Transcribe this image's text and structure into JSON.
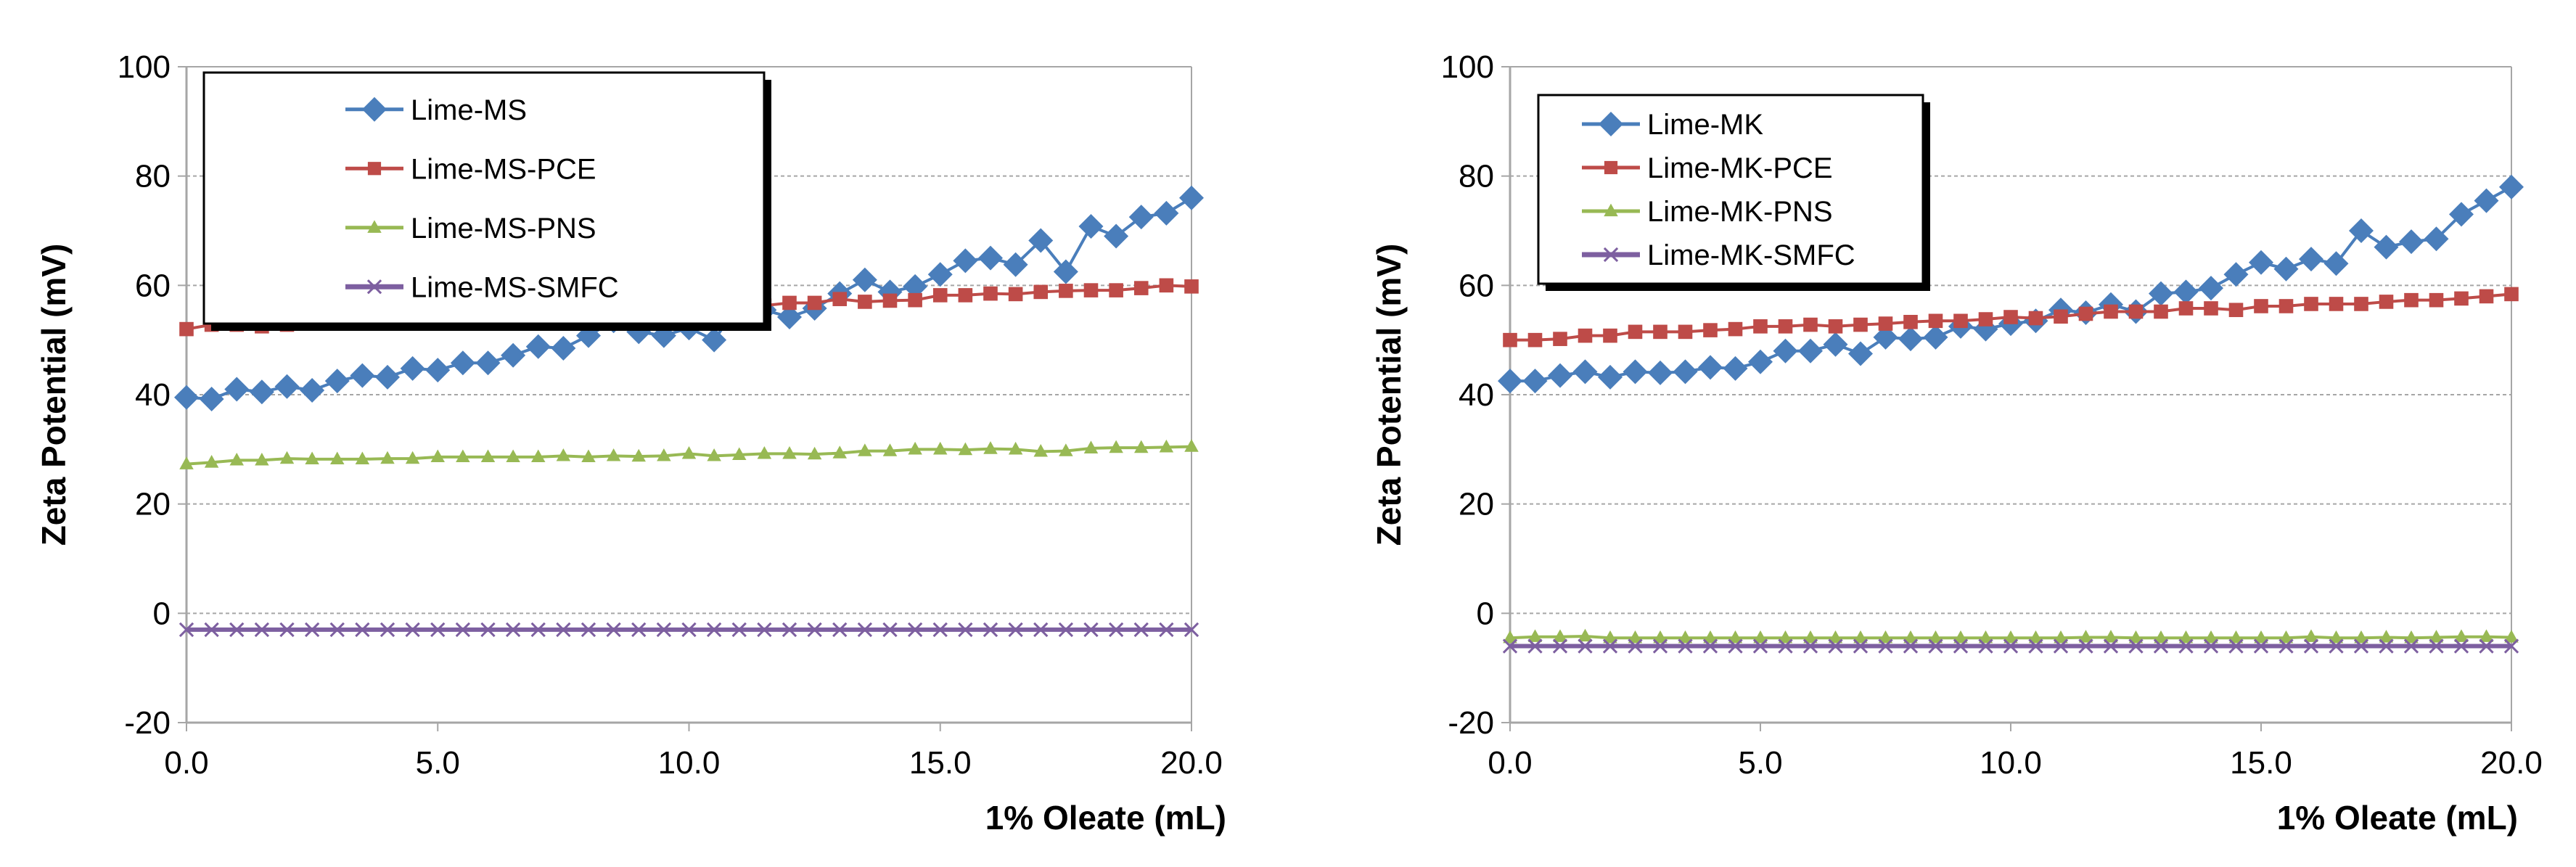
{
  "chart_data": [
    {
      "type": "line",
      "title": "",
      "xlabel": "1% Oleate (mL)",
      "ylabel": "Zeta Potential (mV)",
      "xlim": [
        0,
        20
      ],
      "ylim": [
        -20,
        100
      ],
      "xticks": [
        "0.0",
        "5.0",
        "10.0",
        "15.0",
        "20.0"
      ],
      "yticks": [
        "-20",
        "0",
        "20",
        "40",
        "60",
        "80",
        "100"
      ],
      "grid": "horizontal dashed",
      "legend_placement": "top-left",
      "x_step": 0.5,
      "series": [
        {
          "name": "Lime-MS",
          "color": "#4a7ebb",
          "marker": "diamond",
          "values": [
            39.5,
            39.2,
            41,
            40.5,
            41.5,
            40.8,
            42.5,
            43.5,
            43.2,
            44.8,
            44.5,
            45.8,
            45.8,
            47.2,
            48.8,
            48.5,
            50.8,
            53.5,
            51.5,
            50.8,
            52.2,
            50,
            56.5,
            55.5,
            54.2,
            55.8,
            58.5,
            61,
            58.8,
            59.8,
            62,
            64.5,
            65,
            63.8,
            68.2,
            62.5,
            70.8,
            69,
            72.5,
            73.2,
            76
          ]
        },
        {
          "name": "Lime-MS-PCE",
          "color": "#be4b48",
          "marker": "square",
          "values": [
            52,
            52.8,
            52.8,
            52.5,
            52.8,
            53,
            53.3,
            53.3,
            53.8,
            53.2,
            53.8,
            54.2,
            54.3,
            54.3,
            54.8,
            54.8,
            54.8,
            55,
            55.5,
            55.8,
            56,
            55.8,
            56.2,
            56.3,
            56.8,
            56.8,
            57.5,
            57,
            57.2,
            57.3,
            58.2,
            58.2,
            58.5,
            58.4,
            58.8,
            59,
            59.1,
            59.1,
            59.5,
            60,
            59.8
          ]
        },
        {
          "name": "Lime-MS-PNS",
          "color": "#98b954",
          "marker": "triangle",
          "values": [
            27.3,
            27.6,
            28,
            28,
            28.3,
            28.2,
            28.2,
            28.2,
            28.3,
            28.3,
            28.6,
            28.6,
            28.6,
            28.6,
            28.6,
            28.8,
            28.6,
            28.8,
            28.7,
            28.8,
            29.2,
            28.8,
            29,
            29.2,
            29.2,
            29.1,
            29.3,
            29.7,
            29.7,
            30,
            30,
            29.9,
            30.1,
            30,
            29.6,
            29.7,
            30.2,
            30.3,
            30.3,
            30.4,
            30.5
          ]
        },
        {
          "name": "Lime-MS-SMFC",
          "color": "#7d5fa0",
          "marker": "x",
          "values": [
            -3,
            -3,
            -3,
            -3,
            -3,
            -3,
            -3,
            -3,
            -3,
            -3,
            -3,
            -3,
            -3,
            -3,
            -3,
            -3,
            -3,
            -3,
            -3,
            -3,
            -3,
            -3,
            -3,
            -3,
            -3,
            -3,
            -3,
            -3,
            -3,
            -3,
            -3,
            -3,
            -3,
            -3,
            -3,
            -3,
            -3,
            -3,
            -3,
            -3,
            -3
          ]
        }
      ]
    },
    {
      "type": "line",
      "title": "",
      "xlabel": "1% Oleate (mL)",
      "ylabel": "Zeta Potential (mV)",
      "xlim": [
        0,
        20
      ],
      "ylim": [
        -20,
        100
      ],
      "xticks": [
        "0.0",
        "5.0",
        "10.0",
        "15.0",
        "20.0"
      ],
      "yticks": [
        "-20",
        "0",
        "20",
        "40",
        "60",
        "80",
        "100"
      ],
      "grid": "horizontal dashed",
      "legend_placement": "top-left",
      "x_step": 0.5,
      "series": [
        {
          "name": "Lime-MK",
          "color": "#4a7ebb",
          "marker": "diamond",
          "values": [
            42.5,
            42.5,
            43.5,
            44.2,
            43.2,
            44.2,
            44,
            44.2,
            45,
            44.8,
            46,
            48,
            48,
            49.2,
            47.5,
            50.5,
            50.2,
            50.5,
            52.5,
            52,
            53,
            53.5,
            55.5,
            55,
            56.5,
            55.2,
            58.5,
            58.8,
            59.5,
            62,
            64.2,
            63,
            64.8,
            64,
            70,
            67,
            68,
            68.5,
            73,
            75.5,
            78
          ]
        },
        {
          "name": "Lime-MK-PCE",
          "color": "#be4b48",
          "marker": "square",
          "values": [
            50,
            50,
            50.2,
            50.8,
            50.8,
            51.5,
            51.5,
            51.5,
            51.8,
            52,
            52.5,
            52.5,
            52.8,
            52.5,
            52.8,
            53,
            53.3,
            53.5,
            53.5,
            53.8,
            54.2,
            54,
            54.3,
            54.8,
            55.2,
            55.2,
            55.2,
            55.8,
            55.8,
            55.5,
            56.2,
            56.2,
            56.6,
            56.6,
            56.6,
            57,
            57.3,
            57.3,
            57.6,
            58,
            58.4
          ]
        },
        {
          "name": "Lime-MK-PNS",
          "color": "#98b954",
          "marker": "triangle",
          "values": [
            -4.5,
            -4.3,
            -4.3,
            -4.2,
            -4.5,
            -4.5,
            -4.5,
            -4.5,
            -4.5,
            -4.5,
            -4.5,
            -4.5,
            -4.5,
            -4.5,
            -4.5,
            -4.5,
            -4.5,
            -4.5,
            -4.5,
            -4.5,
            -4.5,
            -4.5,
            -4.5,
            -4.4,
            -4.4,
            -4.5,
            -4.5,
            -4.5,
            -4.5,
            -4.5,
            -4.5,
            -4.5,
            -4.3,
            -4.5,
            -4.5,
            -4.4,
            -4.5,
            -4.4,
            -4.3,
            -4.3,
            -4.4
          ]
        },
        {
          "name": "Lime-MK-SMFC",
          "color": "#7d5fa0",
          "marker": "x",
          "values": [
            -6,
            -6,
            -6,
            -6,
            -6,
            -6,
            -6,
            -6,
            -6,
            -6,
            -6,
            -6,
            -6,
            -6,
            -6,
            -6,
            -6,
            -6,
            -6,
            -6,
            -6,
            -6,
            -6,
            -6,
            -6,
            -6,
            -6,
            -6,
            -6,
            -6,
            -6,
            -6,
            -6,
            -6,
            -6,
            -6,
            -6,
            -6,
            -6,
            -6,
            -6
          ]
        }
      ]
    }
  ]
}
